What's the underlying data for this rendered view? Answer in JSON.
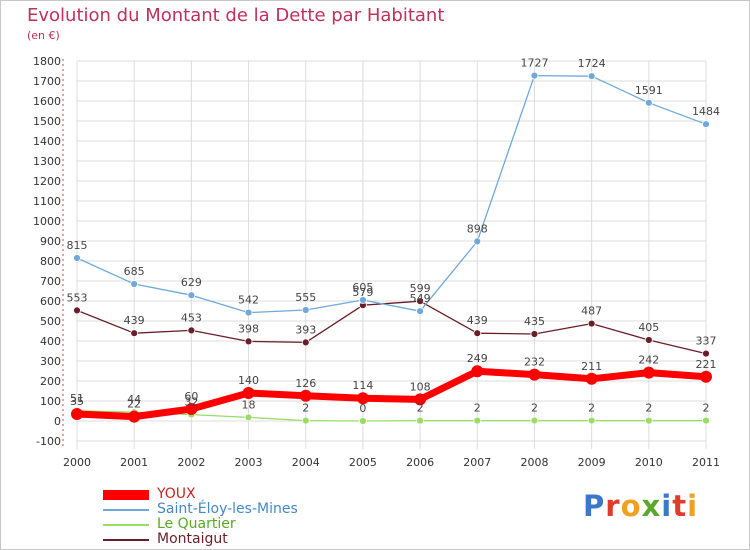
{
  "colors": {
    "background": "#ffffff",
    "grid": "#dcdcdc",
    "title": "#c0305a",
    "axis_text": "#333333",
    "label_text": "#444444"
  },
  "logo": {
    "text": "Proxiti",
    "letter_colors": [
      "#3c78c8",
      "#e03c2c",
      "#f0a020",
      "#5aa82c",
      "#3c78c8",
      "#e03c2c",
      "#f0a020"
    ]
  },
  "chart_data": {
    "type": "line",
    "title": "Evolution du Montant de la Dette par Habitant",
    "subtitle": "(en €)",
    "x": [
      "2000",
      "2001",
      "2002",
      "2003",
      "2004",
      "2005",
      "2006",
      "2007",
      "2008",
      "2009",
      "2010",
      "2011"
    ],
    "ylim": [
      -100,
      1800
    ],
    "yticks": [
      -100,
      0,
      100,
      200,
      300,
      400,
      500,
      600,
      700,
      800,
      900,
      1000,
      1100,
      1200,
      1300,
      1400,
      1500,
      1600,
      1700,
      1800
    ],
    "grid": true,
    "legend_position": "bottom-left",
    "series": [
      {
        "name": "YOUX",
        "color": "#ff0000",
        "values": [
          35,
          22,
          60,
          140,
          126,
          114,
          108,
          249,
          232,
          211,
          242,
          221
        ],
        "labels": [
          "35",
          "22",
          "60",
          "140",
          "126",
          "114",
          "108",
          "249",
          "232",
          "211",
          "242",
          "221"
        ],
        "style": "thick"
      },
      {
        "name": "Saint-Éloy-les-Mines",
        "color": "#6fa8dc",
        "values": [
          815,
          685,
          629,
          542,
          555,
          605,
          549,
          898,
          1727,
          1724,
          1591,
          1484
        ],
        "labels": [
          "815",
          "685",
          "629",
          "542",
          "555",
          "605",
          "549",
          "898",
          "1727",
          "1724",
          "1591",
          "1484"
        ]
      },
      {
        "name": "Le Quartier",
        "color": "#99dd66",
        "values": [
          51,
          44,
          32,
          18,
          2,
          0,
          2,
          2,
          2,
          2,
          2,
          2
        ],
        "labels": [
          "51",
          "44",
          "32",
          "18",
          "2",
          "0",
          "2",
          "2",
          "2",
          "2",
          "2",
          "2"
        ]
      },
      {
        "name": "Montaigut",
        "color": "#6b1e28",
        "values": [
          553,
          439,
          453,
          398,
          393,
          579,
          599,
          439,
          435,
          487,
          405,
          337
        ],
        "labels": [
          "553",
          "439",
          "453",
          "398",
          "393",
          "579",
          "599",
          "439",
          "435",
          "487",
          "405",
          "337"
        ]
      }
    ]
  }
}
